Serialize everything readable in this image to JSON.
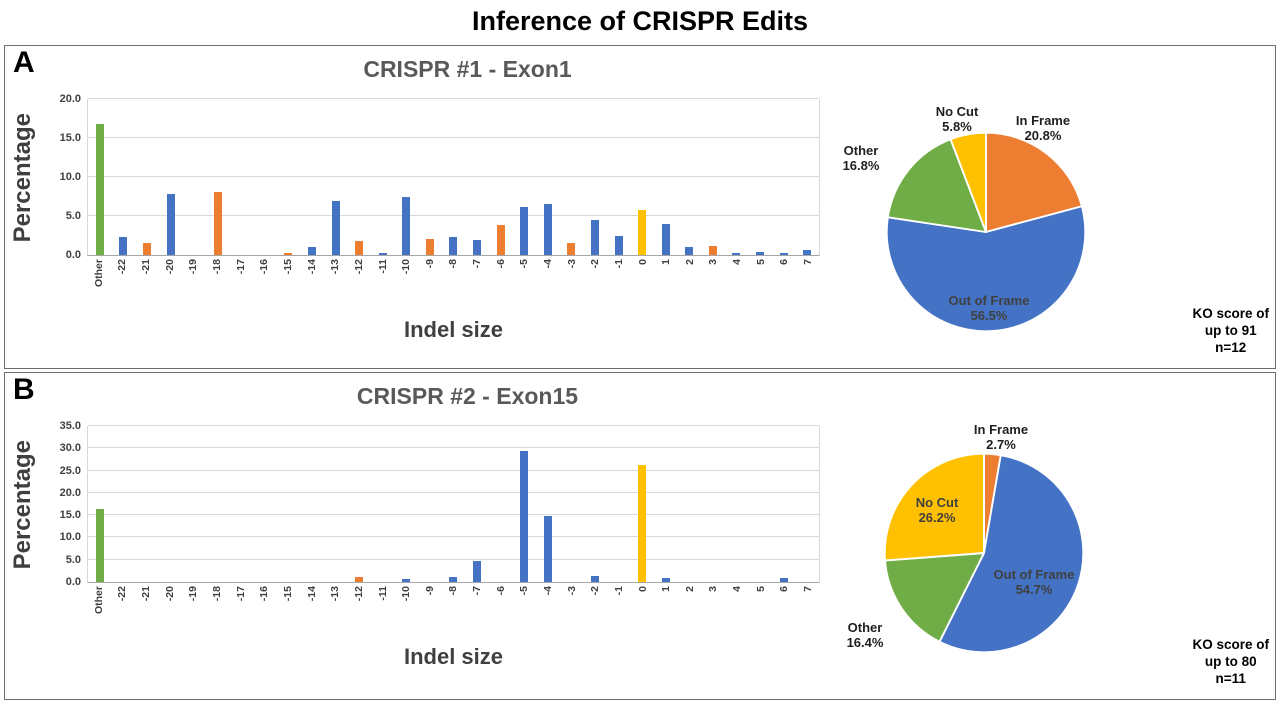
{
  "title": "Inference of CRISPR Edits",
  "panels": [
    {
      "label": "A",
      "ko_lines": [
        "KO score of",
        "up to 91",
        "n=12"
      ]
    },
    {
      "label": "B",
      "ko_lines": [
        "KO score of",
        "up to 80",
        "n=11"
      ]
    }
  ],
  "colors": {
    "blue": "#4472C4",
    "orange": "#ED7D31",
    "green": "#70AD47",
    "yellow": "#FFC000",
    "title_gray": "#595959"
  },
  "chart_data": [
    {
      "id": "bar-crispr1",
      "type": "bar",
      "title": "CRISPR #1 -  Exon1",
      "xlabel": "Indel size",
      "ylabel": "Percentage",
      "ylim": [
        0,
        20
      ],
      "grid": true,
      "yticks": [
        "20.0",
        "15.0",
        "10.0",
        "5.0",
        "0.0"
      ],
      "categories": [
        "Other",
        "-22",
        "-21",
        "-20",
        "-19",
        "-18",
        "-17",
        "-16",
        "-15",
        "-14",
        "-13",
        "-12",
        "-11",
        "-10",
        "-9",
        "-8",
        "-7",
        "-6",
        "-5",
        "-4",
        "-3",
        "-2",
        "-1",
        "0",
        "1",
        "2",
        "3",
        "4",
        "5",
        "6",
        "7"
      ],
      "values": [
        16.8,
        2.3,
        1.5,
        7.8,
        0,
        8.1,
        0,
        0,
        0.3,
        1.0,
        6.9,
        1.8,
        0.2,
        7.5,
        2.1,
        2.3,
        1.9,
        3.9,
        6.2,
        6.5,
        1.6,
        4.5,
        2.5,
        5.8,
        4.0,
        1.0,
        1.1,
        0.3,
        0.4,
        0.3,
        0.6
      ],
      "bar_colors": [
        "g",
        "b",
        "o",
        "b",
        "b",
        "o",
        "b",
        "b",
        "o",
        "b",
        "b",
        "o",
        "b",
        "b",
        "o",
        "b",
        "b",
        "o",
        "b",
        "b",
        "o",
        "b",
        "b",
        "y",
        "b",
        "b",
        "o",
        "b",
        "b",
        "b",
        "b"
      ],
      "palette": {
        "b": "#4472C4",
        "o": "#ED7D31",
        "g": "#70AD47",
        "y": "#FFC000"
      }
    },
    {
      "id": "pie-crispr1",
      "type": "pie",
      "start_angle_deg": -90,
      "clockwise": true,
      "slices": [
        {
          "label": "In Frame",
          "value": 20.8,
          "pct_label": "20.8%",
          "color": "#ED7D31"
        },
        {
          "label": "Out of Frame",
          "value": 56.5,
          "pct_label": "56.5%",
          "color": "#4472C4"
        },
        {
          "label": "Other",
          "value": 16.8,
          "pct_label": "16.8%",
          "color": "#70AD47"
        },
        {
          "label": "No Cut",
          "value": 5.8,
          "pct_label": "5.8%",
          "color": "#FFC000"
        }
      ]
    },
    {
      "id": "bar-crispr2",
      "type": "bar",
      "title": "CRISPR #2 - Exon15",
      "xlabel": "Indel size",
      "ylabel": "Percentage",
      "ylim": [
        0,
        35
      ],
      "grid": true,
      "yticks": [
        "35.0",
        "30.0",
        "25.0",
        "20.0",
        "15.0",
        "10.0",
        "5.0",
        "0.0"
      ],
      "categories": [
        "Other",
        "-22",
        "-21",
        "-20",
        "-19",
        "-18",
        "-17",
        "-16",
        "-15",
        "-14",
        "-13",
        "-12",
        "-11",
        "-10",
        "-9",
        "-8",
        "-7",
        "-6",
        "-5",
        "-4",
        "-3",
        "-2",
        "-1",
        "0",
        "1",
        "2",
        "3",
        "4",
        "5",
        "6",
        "7"
      ],
      "values": [
        16.4,
        0,
        0,
        0,
        0,
        0,
        0,
        0,
        0,
        0,
        0,
        1.2,
        0,
        0.7,
        0,
        1.2,
        4.8,
        0,
        29.5,
        14.8,
        0,
        1.4,
        0,
        26.2,
        0.9,
        0,
        0,
        0,
        0,
        1.0,
        0
      ],
      "bar_colors": [
        "g",
        "b",
        "b",
        "b",
        "b",
        "b",
        "b",
        "b",
        "b",
        "b",
        "b",
        "o",
        "b",
        "b",
        "b",
        "b",
        "b",
        "b",
        "b",
        "b",
        "b",
        "b",
        "b",
        "y",
        "b",
        "b",
        "b",
        "b",
        "b",
        "b",
        "b"
      ],
      "palette": {
        "b": "#4472C4",
        "o": "#ED7D31",
        "g": "#70AD47",
        "y": "#FFC000"
      }
    },
    {
      "id": "pie-crispr2",
      "type": "pie",
      "start_angle_deg": -90,
      "clockwise": true,
      "slices": [
        {
          "label": "In Frame",
          "value": 2.7,
          "pct_label": "2.7%",
          "color": "#ED7D31"
        },
        {
          "label": "Out of Frame",
          "value": 54.7,
          "pct_label": "54.7%",
          "color": "#4472C4"
        },
        {
          "label": "Other",
          "value": 16.4,
          "pct_label": "16.4%",
          "color": "#70AD47"
        },
        {
          "label": "No Cut",
          "value": 26.2,
          "pct_label": "26.2%",
          "color": "#FFC000"
        }
      ]
    }
  ]
}
